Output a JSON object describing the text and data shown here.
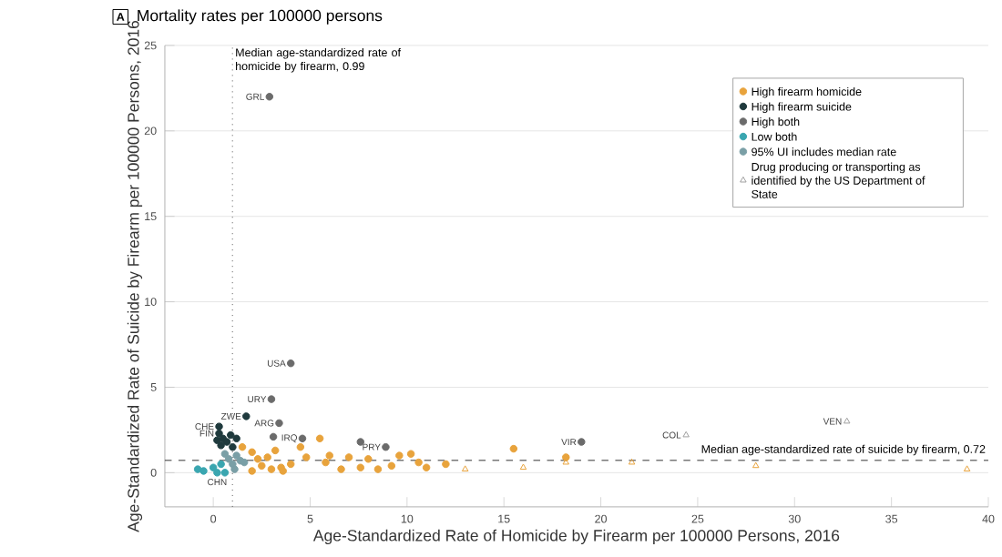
{
  "chart_data": {
    "type": "scatter",
    "title": "Mortality rates per 100000 persons",
    "xlabel": "Age-Standardized Rate of Homicide by Firearm per 100000 Persons, 2016",
    "ylabel": "Age-Standardized Rate of Suicide by Firearm per 100000 Persons, 2016",
    "xlim": [
      -2.5,
      40
    ],
    "ylim": [
      -2,
      25
    ],
    "xticks": [
      0,
      5,
      10,
      15,
      20,
      25,
      30,
      35,
      40
    ],
    "yticks": [
      0,
      5,
      10,
      15,
      20,
      25
    ],
    "grid": "y",
    "legend": "top right",
    "series": [
      {
        "name": "High firearm homicide",
        "color": "#e8a33c",
        "marker": "circle",
        "x": [
          1.5,
          2.0,
          2.5,
          3.0,
          3.5,
          2.3,
          2.8,
          3.2,
          3.6,
          4.0,
          4.5,
          4.8,
          5.5,
          5.8,
          6.0,
          6.6,
          7.0,
          7.6,
          8.0,
          8.5,
          9.2,
          9.6,
          10.2,
          10.6,
          11.0,
          12.0,
          15.5,
          18.2,
          2.0
        ],
        "values": [
          1.5,
          1.2,
          0.4,
          0.2,
          0.3,
          0.8,
          0.9,
          1.3,
          0.1,
          0.5,
          1.5,
          0.9,
          2.0,
          0.6,
          1.0,
          0.2,
          0.9,
          0.3,
          0.8,
          0.2,
          0.4,
          1.0,
          1.1,
          0.6,
          0.3,
          0.5,
          1.4,
          0.9,
          0.1
        ]
      },
      {
        "name": "High firearm suicide",
        "color": "#1f3a3d",
        "marker": "circle",
        "x": [
          0.3,
          0.3,
          0.5,
          0.7,
          0.9,
          1.2,
          1.0,
          0.4,
          0.2,
          1.7
        ],
        "values": [
          2.7,
          2.3,
          2.0,
          1.8,
          2.2,
          2.0,
          1.5,
          1.6,
          1.9,
          3.3
        ]
      },
      {
        "name": "High both",
        "color": "#6b6b6b",
        "marker": "circle",
        "x": [
          2.9,
          4.0,
          3.0,
          3.4,
          3.1,
          4.6,
          8.9,
          19.0,
          7.6
        ],
        "values": [
          22.0,
          6.4,
          4.3,
          2.9,
          2.1,
          2.0,
          1.5,
          1.8,
          1.8
        ]
      },
      {
        "name": "Low both",
        "color": "#3aa6b0",
        "marker": "circle",
        "x": [
          -0.5,
          0.0,
          0.4,
          -0.8,
          0.6,
          0.2
        ],
        "values": [
          0.1,
          0.3,
          0.5,
          0.2,
          0.0,
          0.0
        ]
      },
      {
        "name": "95% UI includes median rate",
        "color": "#7a9fa6",
        "marker": "circle",
        "x": [
          0.8,
          1.0,
          1.2,
          1.4,
          0.6,
          1.1,
          1.6
        ],
        "values": [
          0.8,
          0.5,
          1.0,
          0.7,
          1.1,
          0.2,
          0.6
        ]
      },
      {
        "name": "Drug producing or transporting as identified by the US Department of State",
        "color": "#a0a0a0",
        "marker": "triangle",
        "x": [
          13.0,
          16.0,
          18.2,
          21.6,
          28.0,
          38.9,
          24.4,
          32.7
        ],
        "values": [
          0.2,
          0.3,
          0.6,
          0.6,
          0.4,
          0.2,
          2.2,
          3.0
        ],
        "colors": [
          "#e8a33c",
          "#e8a33c",
          "#e8a33c",
          "#e8a33c",
          "#e8a33c",
          "#e8a33c",
          "#a0a0a0",
          "#a0a0a0"
        ]
      }
    ],
    "ref_lines": [
      {
        "axis": "x",
        "value": 0.99,
        "label": "Median age-standardized rate of homicide by firearm, 0.99",
        "line_style": "dotted",
        "color": "#555555"
      },
      {
        "axis": "y",
        "value": 0.72,
        "label": "Median age-standardized rate of suicide by firearm, 0.72",
        "line_style": "dashed",
        "color": "#333333"
      }
    ],
    "annotations": [
      "A",
      {
        "text": "GRL",
        "x": 2.9,
        "y": 22.0
      },
      {
        "text": "USA",
        "x": 4.0,
        "y": 6.4
      },
      {
        "text": "URY",
        "x": 3.0,
        "y": 4.3
      },
      {
        "text": "ZWE",
        "x": 1.7,
        "y": 3.3
      },
      {
        "text": "ARG",
        "x": 3.4,
        "y": 2.9
      },
      {
        "text": "CHE",
        "x": 0.3,
        "y": 2.7
      },
      {
        "text": "FIN",
        "x": 0.3,
        "y": 2.3
      },
      {
        "text": "IRQ",
        "x": 4.6,
        "y": 2.0
      },
      {
        "text": "PRY",
        "x": 8.9,
        "y": 1.5
      },
      {
        "text": "VIR",
        "x": 19.0,
        "y": 1.8
      },
      {
        "text": "COL",
        "x": 24.4,
        "y": 2.2
      },
      {
        "text": "VEN",
        "x": 32.7,
        "y": 3.0
      },
      {
        "text": "CHN",
        "x": 0.2,
        "y": 0.0
      }
    ]
  }
}
